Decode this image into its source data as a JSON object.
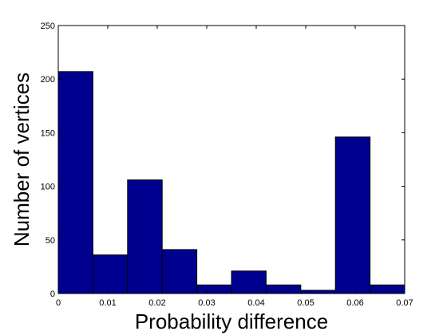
{
  "chart_data": {
    "type": "bar",
    "title": "",
    "xlabel": "Probability difference",
    "ylabel": "Number of vertices",
    "xlim": [
      0,
      0.07
    ],
    "ylim": [
      0,
      250
    ],
    "bin_edges": [
      0,
      0.007,
      0.014,
      0.021,
      0.028,
      0.035,
      0.042,
      0.049,
      0.056,
      0.063,
      0.07
    ],
    "values": [
      207,
      36,
      106,
      41,
      8,
      21,
      8,
      3,
      146,
      8
    ],
    "xticks": [
      0,
      0.01,
      0.02,
      0.03,
      0.04,
      0.05,
      0.06,
      0.07
    ],
    "xtick_labels": [
      "0",
      "0.01",
      "0.02",
      "0.03",
      "0.04",
      "0.05",
      "0.06",
      "0.07"
    ],
    "yticks": [
      0,
      50,
      100,
      150,
      200,
      250
    ],
    "ytick_labels": [
      "0",
      "50",
      "100",
      "150",
      "200",
      "250"
    ],
    "grid": false,
    "bar_color": "#00008f",
    "edge_color": "#000000"
  }
}
